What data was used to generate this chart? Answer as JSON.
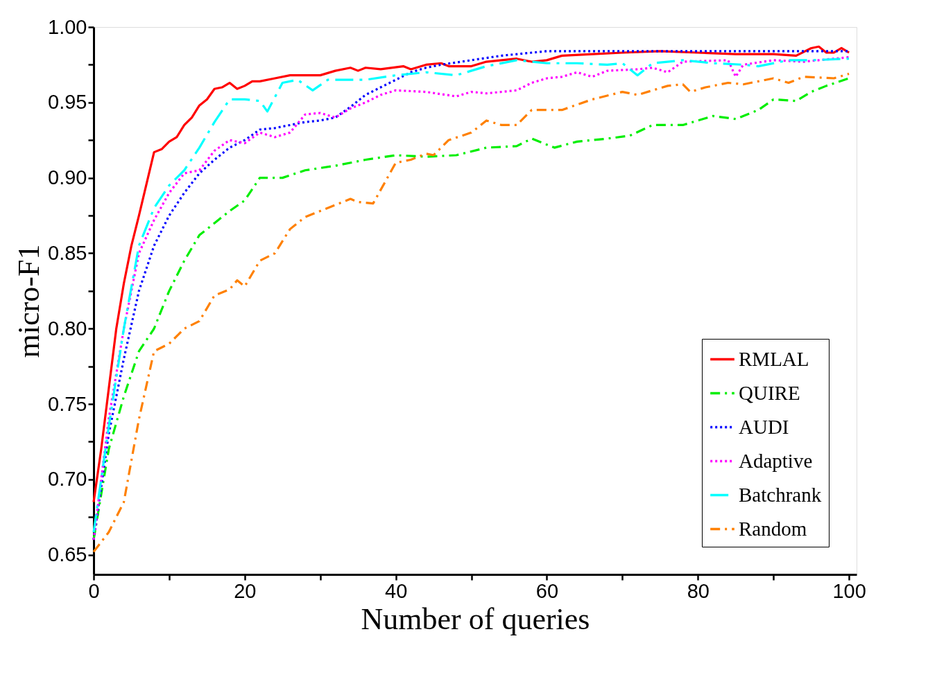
{
  "chart_data": {
    "type": "line",
    "xlabel": "Number of queries",
    "ylabel": "micro-F1",
    "xlim": [
      0,
      101
    ],
    "ylim": [
      0.637,
      1.0
    ],
    "xticks": [
      0,
      {
        "value": 10,
        "label": null
      },
      20,
      {
        "value": 30,
        "label": null
      },
      40,
      {
        "value": 50,
        "label": null
      },
      60,
      {
        "value": 70,
        "label": null
      },
      80,
      {
        "value": 90,
        "label": null
      },
      100
    ],
    "yticks": [
      {
        "value": 0.65,
        "label": "0.65"
      },
      {
        "value": 0.675,
        "label": null
      },
      {
        "value": 0.7,
        "label": "0.70"
      },
      {
        "value": 0.725,
        "label": null
      },
      {
        "value": 0.75,
        "label": "0.75"
      },
      {
        "value": 0.775,
        "label": null
      },
      {
        "value": 0.8,
        "label": "0.80"
      },
      {
        "value": 0.825,
        "label": null
      },
      {
        "value": 0.85,
        "label": "0.85"
      },
      {
        "value": 0.875,
        "label": null
      },
      {
        "value": 0.9,
        "label": "0.90"
      },
      {
        "value": 0.925,
        "label": null
      },
      {
        "value": 0.95,
        "label": "0.95"
      },
      {
        "value": 0.975,
        "label": null
      },
      {
        "value": 1.0,
        "label": "1.00"
      }
    ],
    "grid": false,
    "legend": "bottom right",
    "marker": "none",
    "series": [
      {
        "name": "RMLAL",
        "color": "#ff0000",
        "line_style": "solid",
        "x": [
          0,
          1,
          2,
          3,
          4,
          5,
          6,
          8,
          9,
          10,
          11,
          12,
          13,
          14,
          15,
          16,
          17,
          18,
          19,
          20,
          21,
          22,
          24,
          26,
          28,
          30,
          32,
          34,
          35,
          36,
          38,
          41,
          42,
          44,
          46,
          47,
          50,
          52,
          56,
          58,
          60,
          62,
          66,
          70,
          75,
          80,
          85,
          90,
          93,
          95,
          96,
          97,
          98,
          99,
          100
        ],
        "values": [
          0.685,
          0.72,
          0.76,
          0.8,
          0.83,
          0.855,
          0.875,
          0.917,
          0.919,
          0.924,
          0.927,
          0.935,
          0.94,
          0.948,
          0.952,
          0.959,
          0.96,
          0.963,
          0.959,
          0.961,
          0.964,
          0.964,
          0.966,
          0.968,
          0.968,
          0.968,
          0.971,
          0.973,
          0.971,
          0.973,
          0.972,
          0.974,
          0.972,
          0.975,
          0.976,
          0.974,
          0.974,
          0.977,
          0.979,
          0.977,
          0.978,
          0.981,
          0.982,
          0.983,
          0.984,
          0.983,
          0.982,
          0.982,
          0.981,
          0.986,
          0.987,
          0.983,
          0.983,
          0.986,
          0.983
        ]
      },
      {
        "name": "QUIRE",
        "color": "#00ee00",
        "line_style": "dashdot",
        "x": [
          0,
          2,
          4,
          6,
          8,
          10,
          12,
          14,
          16,
          18,
          20,
          22,
          25,
          28,
          32,
          36,
          40,
          44,
          48,
          52,
          56,
          58,
          61,
          64,
          68,
          71,
          74,
          78,
          82,
          85,
          88,
          90,
          93,
          95,
          97,
          100
        ],
        "values": [
          0.66,
          0.72,
          0.755,
          0.785,
          0.8,
          0.825,
          0.845,
          0.862,
          0.87,
          0.878,
          0.885,
          0.9,
          0.9,
          0.905,
          0.908,
          0.912,
          0.915,
          0.914,
          0.915,
          0.92,
          0.921,
          0.926,
          0.92,
          0.924,
          0.926,
          0.928,
          0.935,
          0.935,
          0.941,
          0.939,
          0.945,
          0.952,
          0.951,
          0.957,
          0.961,
          0.966
        ]
      },
      {
        "name": "AUDI",
        "color": "#0000ff",
        "line_style": "dotted",
        "x": [
          0,
          2,
          4,
          6,
          8,
          10,
          12,
          14,
          16,
          18,
          20,
          22,
          24,
          26,
          28,
          30,
          32,
          34,
          36,
          38,
          40,
          42,
          44,
          46,
          50,
          54,
          58,
          60,
          70,
          80,
          90,
          100
        ],
        "values": [
          0.66,
          0.73,
          0.78,
          0.825,
          0.855,
          0.875,
          0.89,
          0.903,
          0.912,
          0.92,
          0.925,
          0.932,
          0.933,
          0.935,
          0.937,
          0.938,
          0.94,
          0.947,
          0.955,
          0.96,
          0.965,
          0.97,
          0.973,
          0.975,
          0.978,
          0.981,
          0.983,
          0.984,
          0.984,
          0.984,
          0.984,
          0.984
        ]
      },
      {
        "name": "Adaptive",
        "color": "#ff00ff",
        "line_style": "dotted",
        "x": [
          0,
          2,
          4,
          6,
          8,
          10,
          12,
          14,
          16,
          18,
          20,
          22,
          24,
          26,
          28,
          30,
          32,
          34,
          36,
          38,
          40,
          44,
          48,
          50,
          52,
          56,
          58,
          60,
          62,
          64,
          66,
          68,
          72,
          74,
          76,
          78,
          84,
          85,
          86,
          90,
          94,
          96,
          100
        ],
        "values": [
          0.66,
          0.74,
          0.8,
          0.85,
          0.872,
          0.89,
          0.903,
          0.905,
          0.918,
          0.925,
          0.923,
          0.93,
          0.927,
          0.93,
          0.942,
          0.943,
          0.94,
          0.946,
          0.95,
          0.955,
          0.958,
          0.957,
          0.954,
          0.957,
          0.956,
          0.958,
          0.963,
          0.966,
          0.967,
          0.97,
          0.967,
          0.971,
          0.972,
          0.973,
          0.97,
          0.977,
          0.978,
          0.967,
          0.975,
          0.978,
          0.977,
          0.978,
          0.98
        ]
      },
      {
        "name": "Batchrank",
        "color": "#00ffff",
        "line_style": "longdashdot",
        "x": [
          0,
          2,
          4,
          6,
          8,
          10,
          12,
          14,
          16,
          18,
          20,
          22,
          23,
          25,
          27,
          29,
          31,
          36,
          40,
          44,
          48,
          52,
          56,
          60,
          64,
          68,
          70,
          72,
          74,
          78,
          82,
          86,
          88,
          92,
          95,
          100
        ],
        "values": [
          0.665,
          0.735,
          0.8,
          0.855,
          0.88,
          0.895,
          0.905,
          0.92,
          0.937,
          0.952,
          0.952,
          0.951,
          0.944,
          0.963,
          0.965,
          0.958,
          0.965,
          0.965,
          0.968,
          0.97,
          0.968,
          0.974,
          0.978,
          0.976,
          0.976,
          0.975,
          0.976,
          0.968,
          0.976,
          0.978,
          0.976,
          0.975,
          0.974,
          0.978,
          0.978,
          0.979
        ]
      },
      {
        "name": "Random",
        "color": "#ff8000",
        "line_style": "dashdot",
        "x": [
          0,
          2,
          4,
          6,
          8,
          10,
          12,
          14,
          16,
          18,
          19,
          20,
          22,
          24,
          26,
          28,
          30,
          32,
          34,
          35,
          37,
          40,
          42,
          44,
          45,
          47,
          50,
          52,
          54,
          56,
          58,
          62,
          66,
          70,
          72,
          76,
          78,
          79,
          81,
          84,
          86,
          90,
          92,
          94,
          98,
          100
        ],
        "values": [
          0.652,
          0.665,
          0.685,
          0.74,
          0.785,
          0.79,
          0.8,
          0.805,
          0.822,
          0.826,
          0.832,
          0.828,
          0.845,
          0.85,
          0.866,
          0.874,
          0.878,
          0.882,
          0.886,
          0.884,
          0.883,
          0.91,
          0.912,
          0.916,
          0.915,
          0.925,
          0.93,
          0.938,
          0.935,
          0.935,
          0.945,
          0.945,
          0.952,
          0.957,
          0.955,
          0.961,
          0.962,
          0.957,
          0.96,
          0.963,
          0.962,
          0.966,
          0.963,
          0.967,
          0.966,
          0.969
        ]
      }
    ]
  }
}
